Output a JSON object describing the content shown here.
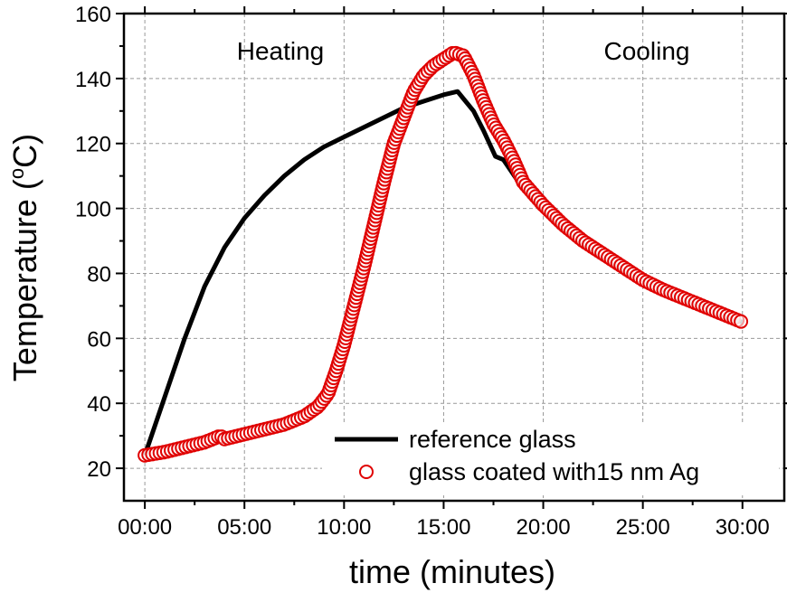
{
  "chart_data": {
    "type": "line",
    "xlabel": "time (minutes)",
    "ylabel": "Temperature (",
    "ylabel_sup": "o",
    "ylabel_end": "C)",
    "xlim": [
      -1.05,
      32.1
    ],
    "ylim": [
      10,
      160
    ],
    "xticks": [
      0,
      5,
      10,
      15,
      20,
      25,
      30
    ],
    "xtick_labels": [
      "00:00",
      "05:00",
      "10:00",
      "15:00",
      "20:00",
      "25:00",
      "30:00"
    ],
    "yticks": [
      20,
      40,
      60,
      80,
      100,
      120,
      140,
      160
    ],
    "ytick_labels": [
      "20",
      "40",
      "60",
      "80",
      "100",
      "120",
      "140",
      "160"
    ],
    "grid": true,
    "legend_placement": "bottom-right",
    "annotations": [
      {
        "text": "Heating",
        "x": 6.8,
        "y": 148
      },
      {
        "text": "Cooling",
        "x": 25.1,
        "y": 148
      }
    ],
    "series": [
      {
        "name": "reference glass",
        "style": "line",
        "color": "#000000",
        "x": [
          0,
          1,
          2,
          3,
          4,
          5,
          6,
          7,
          8,
          9,
          10,
          11,
          12,
          13,
          14,
          15,
          15.7,
          16.5,
          17,
          17.6,
          18,
          19,
          20,
          21,
          22,
          23,
          24,
          25,
          26,
          27,
          28,
          29,
          30
        ],
        "y": [
          24,
          42,
          60,
          76,
          88,
          97,
          104,
          110,
          115,
          119,
          122,
          125,
          128,
          131,
          133,
          135,
          136,
          130,
          124,
          116,
          115,
          106,
          99,
          94,
          89,
          85,
          81,
          78,
          75,
          72,
          70,
          67,
          65
        ]
      },
      {
        "name": "glass coated with15 nm Ag",
        "style": "open-circle",
        "color": "#e00000",
        "x": [
          0,
          1,
          2,
          3,
          3.8,
          4,
          5,
          6,
          7,
          8,
          8.7,
          9.2,
          9.6,
          10,
          10.5,
          11,
          11.5,
          12,
          12.5,
          13,
          13.5,
          14,
          14.5,
          15,
          15.5,
          16,
          16.5,
          17,
          17.5,
          18,
          18.5,
          19,
          20,
          21,
          22,
          23,
          24,
          25,
          26,
          27,
          28,
          29,
          30
        ],
        "y": [
          24,
          25,
          26.5,
          28,
          30,
          29,
          30.5,
          32,
          33.5,
          36,
          39,
          43,
          50,
          58,
          70,
          82,
          95,
          108,
          120,
          128,
          136,
          141,
          144,
          146,
          148,
          147,
          141,
          133,
          126,
          121,
          115,
          108,
          101,
          95,
          90,
          86,
          82,
          78,
          75,
          72.5,
          70,
          67.5,
          65
        ]
      }
    ]
  }
}
